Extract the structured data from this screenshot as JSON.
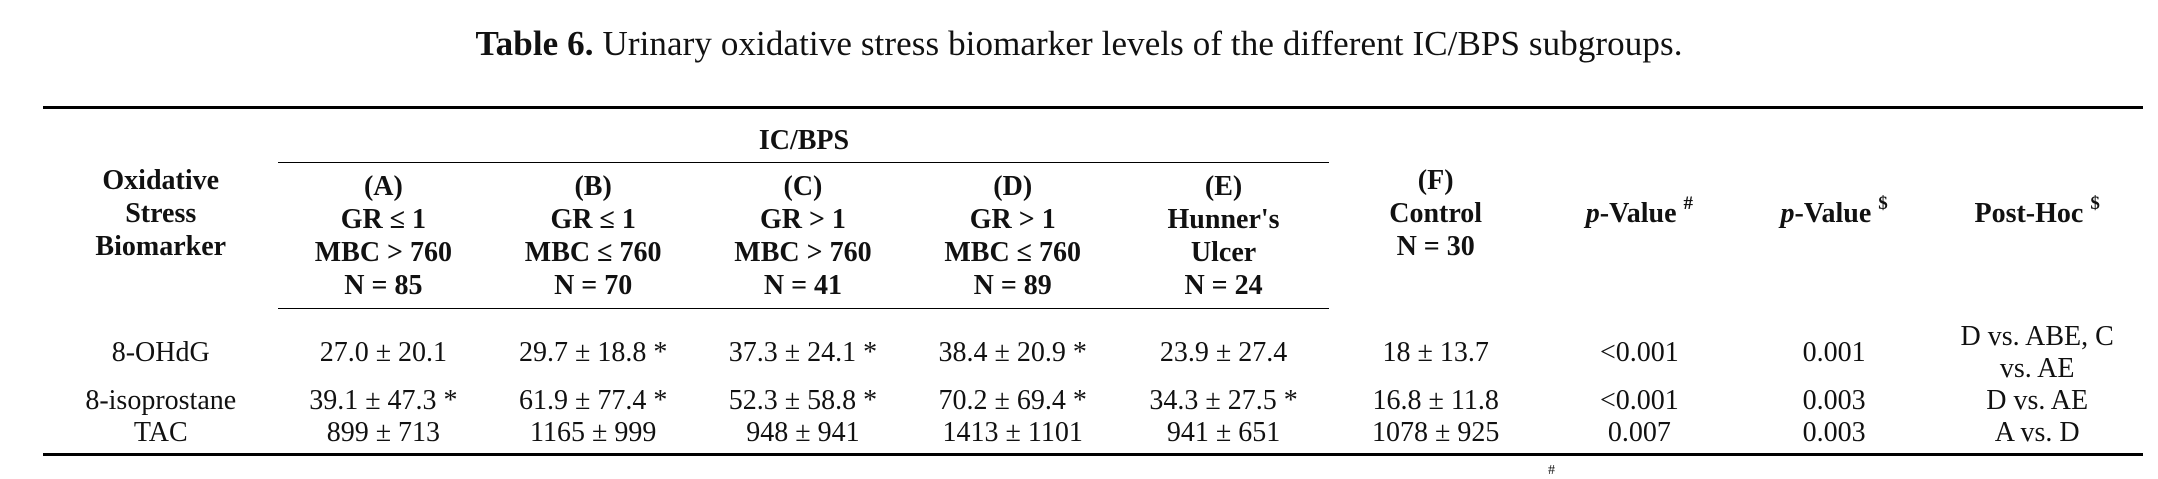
{
  "caption": {
    "label": "Table 6.",
    "text": "Urinary oxidative stress biomarker levels of the different IC/BPS subgroups."
  },
  "header": {
    "biomarker": [
      "Oxidative",
      "Stress",
      "Biomarker"
    ],
    "group_label": "IC/BPS",
    "groups": [
      [
        "(A)",
        "GR ≤ 1",
        "MBC > 760",
        "N = 85"
      ],
      [
        "(B)",
        "GR ≤ 1",
        "MBC ≤ 760",
        "N = 70"
      ],
      [
        "(C)",
        "GR > 1",
        "MBC > 760",
        "N = 41"
      ],
      [
        "(D)",
        "GR > 1",
        "MBC ≤ 760",
        "N = 89"
      ],
      [
        "(E)",
        "Hunner's",
        "Ulcer",
        "N = 24"
      ]
    ],
    "control": [
      "(F)",
      "Control",
      "N = 30"
    ],
    "pvalue1": {
      "p": "p",
      "rest": "-Value",
      "mark": "#"
    },
    "pvalue2": {
      "p": "p",
      "rest": "-Value",
      "mark": "$"
    },
    "posthoc": {
      "label": "Post-Hoc",
      "mark": "$"
    }
  },
  "rows": [
    {
      "name": "8-OHdG",
      "values": [
        "27.0 ± 20.1",
        "29.7 ± 18.8 *",
        "37.3 ± 24.1 *",
        "38.4 ± 20.9 *",
        "23.9 ± 27.4",
        "18 ± 13.7"
      ],
      "p1": "<0.001",
      "p2": "0.001",
      "posthoc": [
        "D vs. ABE, C",
        "vs. AE"
      ]
    },
    {
      "name": "8-isoprostane",
      "values": [
        "39.1 ± 47.3 *",
        "61.9 ± 77.4 *",
        "52.3 ± 58.8 *",
        "70.2 ± 69.4 *",
        "34.3 ± 27.5 *",
        "16.8 ± 11.8"
      ],
      "p1": "<0.001",
      "p2": "0.003",
      "posthoc": [
        "D vs. AE"
      ]
    },
    {
      "name": "TAC",
      "values": [
        "899 ± 713",
        "1165 ± 999",
        "948 ± 941",
        "1413 ± 1101",
        "941 ± 651",
        "1078 ± 925"
      ],
      "p1": "0.007",
      "p2": "0.003",
      "posthoc": [
        "A vs. D"
      ]
    }
  ],
  "footnote_mark": "#"
}
